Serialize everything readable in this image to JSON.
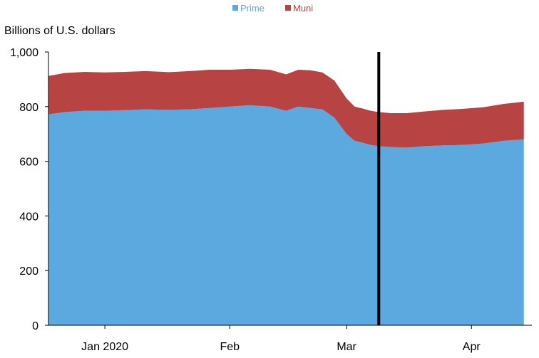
{
  "chart_data": {
    "type": "area",
    "stacked": true,
    "ylabel": "Billions of U.S. dollars",
    "ylim": [
      0,
      1000
    ],
    "yticks": [
      0,
      200,
      400,
      600,
      800,
      1000
    ],
    "ytick_labels": [
      "0",
      "200",
      "400",
      "600",
      "800",
      "1,000"
    ],
    "x_range": [
      "2020-01-01",
      "2020-04-30"
    ],
    "xticks": [
      {
        "date": "2020-01-15",
        "label": "Jan 2020"
      },
      {
        "date": "2020-02-15",
        "label": "Feb"
      },
      {
        "date": "2020-03-15",
        "label": "Mar"
      },
      {
        "date": "2020-04-15",
        "label": "Apr"
      }
    ],
    "legend_position": "top-center",
    "grid": false,
    "vline": {
      "date": "2020-03-23"
    },
    "x": [
      "2020-01-01",
      "2020-01-05",
      "2020-01-10",
      "2020-01-15",
      "2020-01-20",
      "2020-01-25",
      "2020-01-31",
      "2020-02-05",
      "2020-02-10",
      "2020-02-15",
      "2020-02-20",
      "2020-02-25",
      "2020-02-29",
      "2020-03-03",
      "2020-03-06",
      "2020-03-09",
      "2020-03-12",
      "2020-03-15",
      "2020-03-17",
      "2020-03-19",
      "2020-03-21",
      "2020-03-23",
      "2020-03-26",
      "2020-03-30",
      "2020-04-03",
      "2020-04-08",
      "2020-04-13",
      "2020-04-18",
      "2020-04-23",
      "2020-04-28"
    ],
    "series": [
      {
        "name": "Prime",
        "color": "#5ba9de",
        "values": [
          772,
          780,
          785,
          785,
          787,
          790,
          788,
          790,
          795,
          800,
          805,
          800,
          785,
          800,
          795,
          790,
          760,
          700,
          675,
          668,
          660,
          655,
          652,
          650,
          655,
          658,
          660,
          665,
          675,
          680
        ]
      },
      {
        "name": "Muni",
        "color": "#b84343",
        "values": [
          140,
          143,
          142,
          140,
          140,
          140,
          138,
          140,
          140,
          135,
          133,
          135,
          133,
          135,
          138,
          135,
          135,
          130,
          125,
          125,
          125,
          125,
          124,
          126,
          127,
          130,
          132,
          133,
          135,
          138
        ]
      }
    ]
  }
}
